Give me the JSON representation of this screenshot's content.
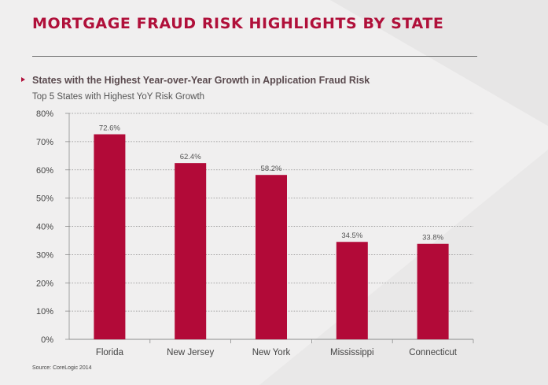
{
  "page": {
    "title": "MORTGAGE FRAUD RISK HIGHLIGHTS BY STATE",
    "subheading": "States with the Highest Year-over-Year Growth in Application Fraud Risk",
    "source": "Source: CoreLogic 2014"
  },
  "colors": {
    "accent": "#b0103a",
    "bar": "#b20a38",
    "background": "#f0efef"
  },
  "chart_data": {
    "type": "bar",
    "title": "Top 5 States with Highest YoY Risk Growth",
    "xlabel": "",
    "ylabel": "",
    "categories": [
      "Florida",
      "New Jersey",
      "New York",
      "Mississippi",
      "Connecticut"
    ],
    "values": [
      72.6,
      62.4,
      58.2,
      34.5,
      33.8
    ],
    "value_labels": [
      "72.6%",
      "62.4%",
      "58.2%",
      "34.5%",
      "33.8%"
    ],
    "ylim": [
      0,
      80
    ],
    "yticks": [
      0,
      10,
      20,
      30,
      40,
      50,
      60,
      70,
      80
    ],
    "ytick_labels": [
      "0%",
      "10%",
      "20%",
      "30%",
      "40%",
      "50%",
      "60%",
      "70%",
      "80%"
    ],
    "grid": true,
    "grid_style": "dotted",
    "legend": "none"
  }
}
